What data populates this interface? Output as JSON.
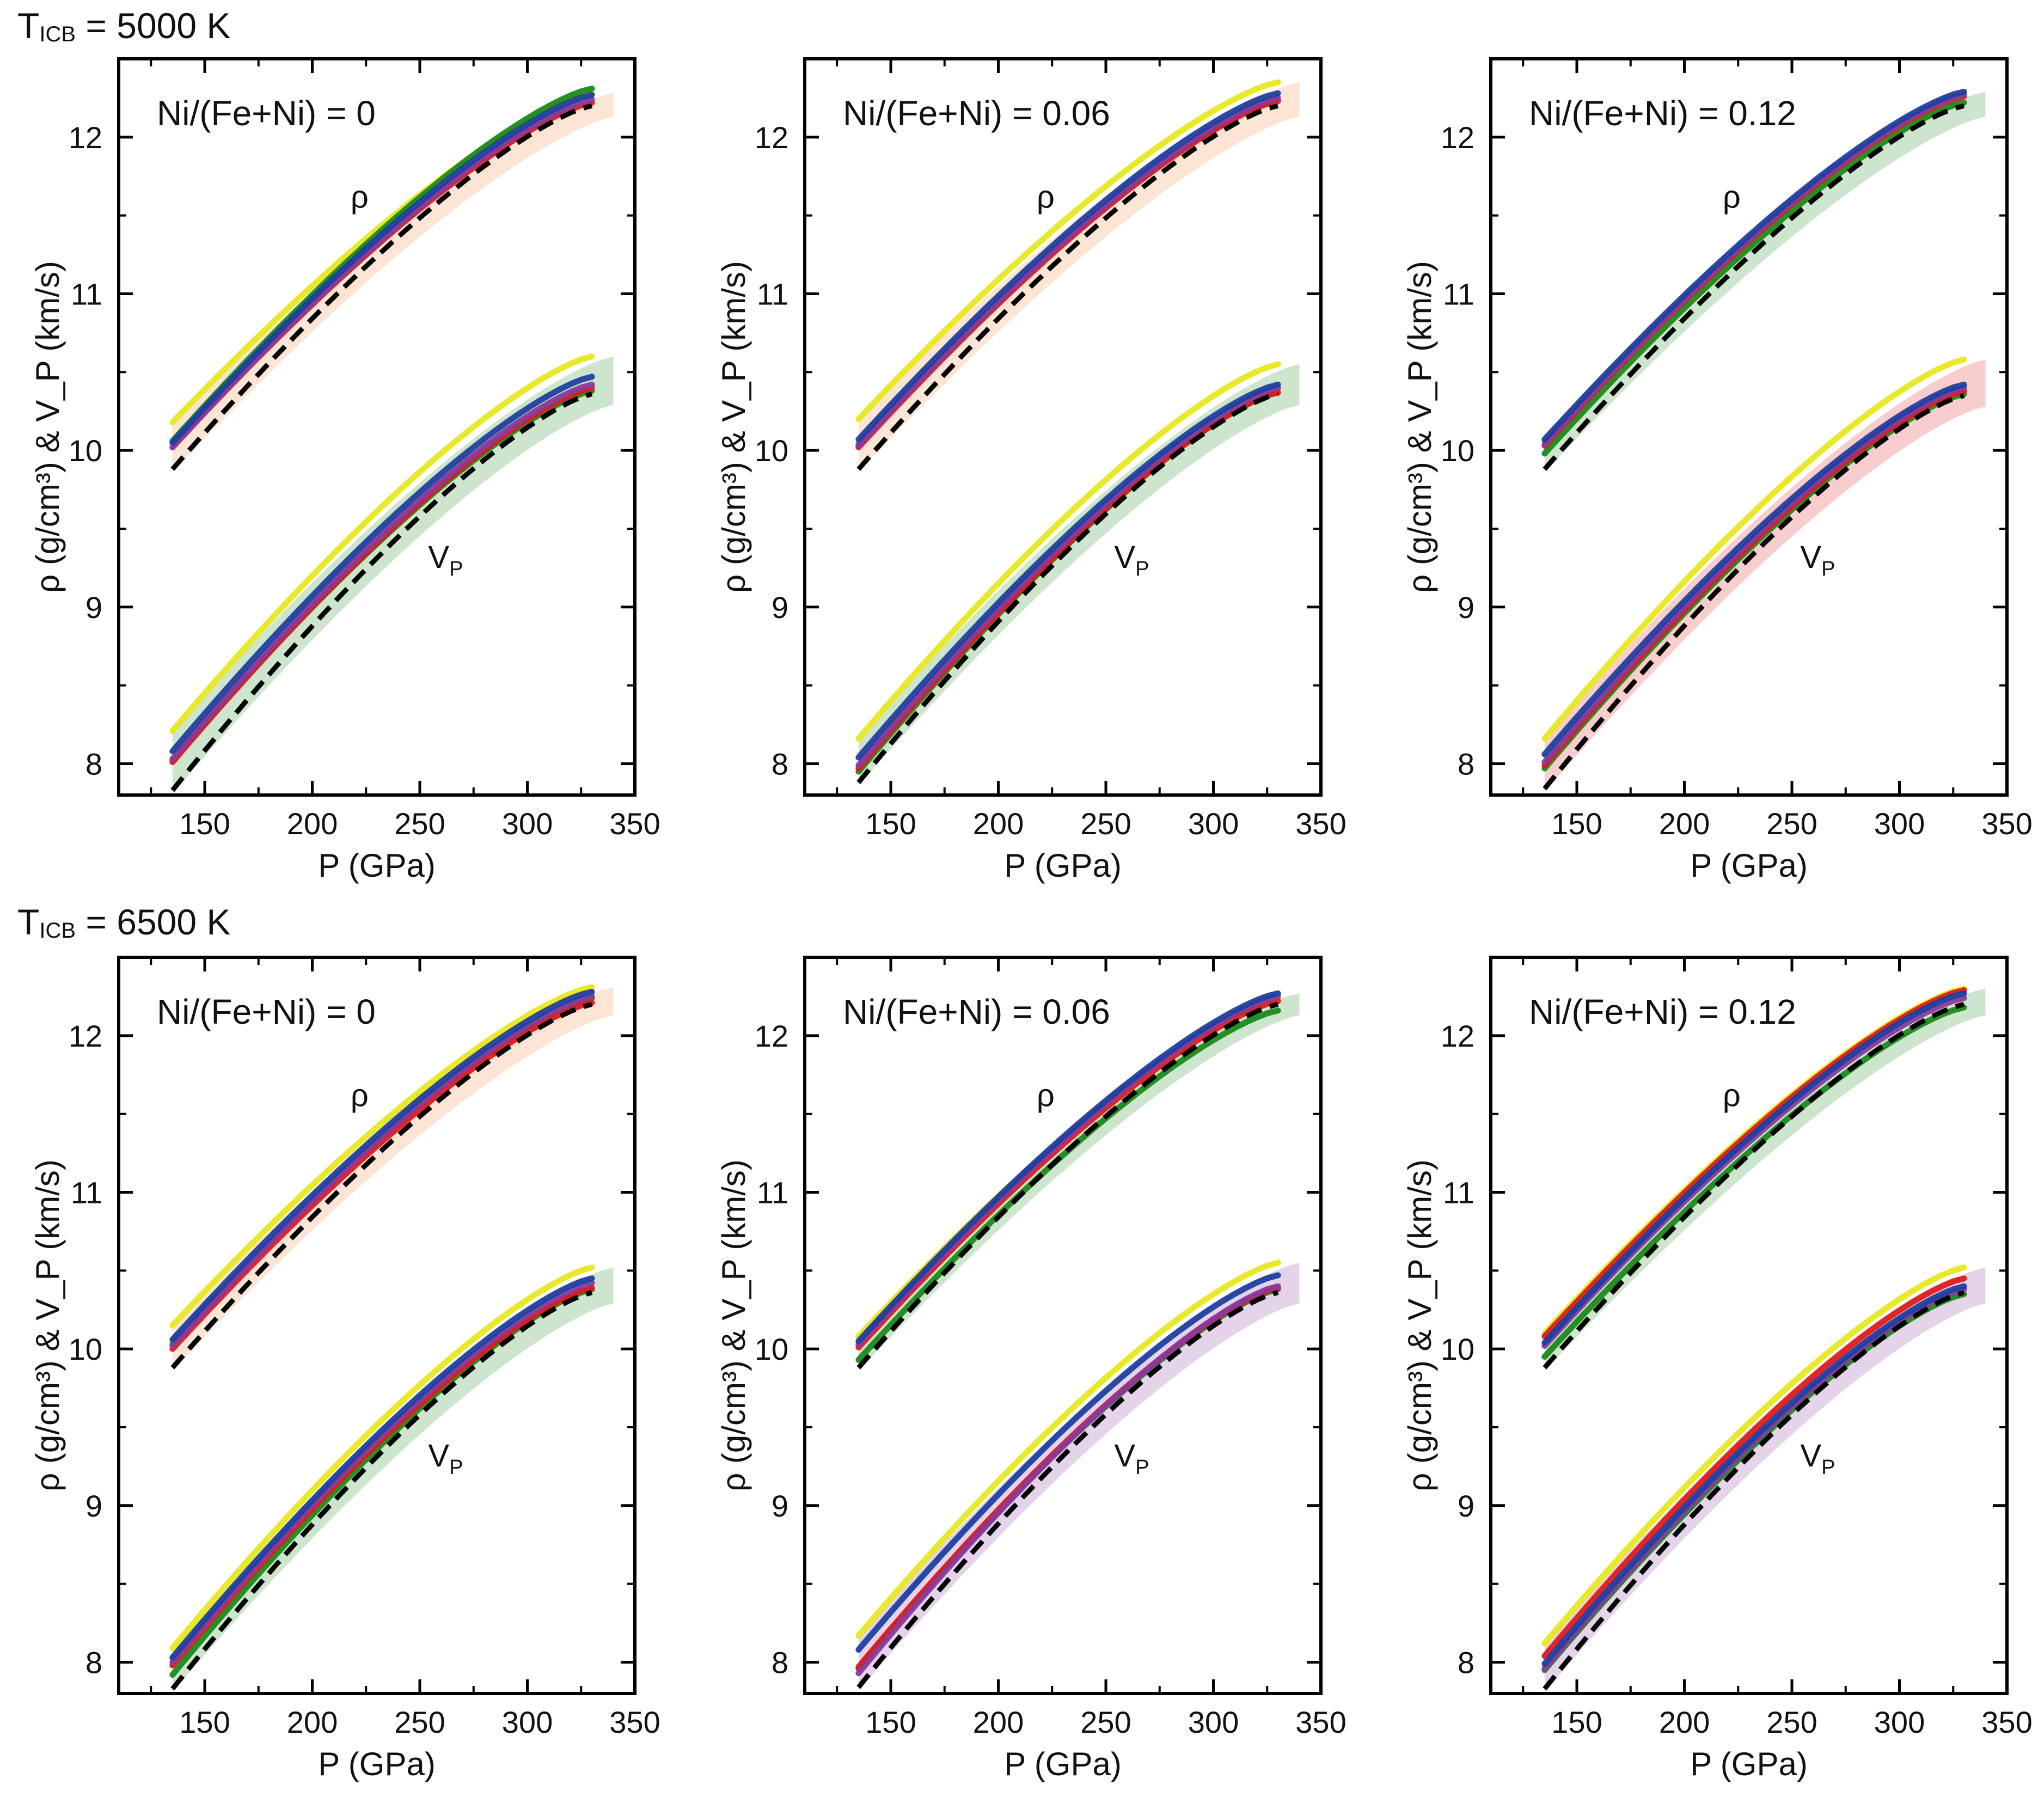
{
  "figure": {
    "rows": [
      {
        "title_main": "T",
        "title_sub": "ICB",
        "title_rest": " = 5000 K"
      },
      {
        "title_main": "T",
        "title_sub": "ICB",
        "title_rest": " = 6500 K"
      }
    ]
  },
  "colors": {
    "yellow": "#e8e820",
    "green": "#1a8a1a",
    "blue": "#1f3fa0",
    "red": "#e01a1a",
    "purple": "#8a3a9a",
    "orange": "#f08a3c",
    "prem": "#000000"
  },
  "chart_data": [
    {
      "type": "line",
      "row": 0,
      "col": 0,
      "panel_label": "Ni/(Fe+Ni) = 0",
      "xlabel": "P (GPa)",
      "ylabel": "ρ (g/cm³) & V_P (km/s)",
      "xlim": [
        110,
        350
      ],
      "ylim": [
        7.8,
        12.5
      ],
      "xticks": [
        150,
        200,
        250,
        300,
        350
      ],
      "yticks": [
        8,
        9,
        10,
        11,
        12
      ],
      "rho_label": "ρ",
      "vp_label": "V",
      "vp_label_sub": "P",
      "x": [
        135,
        330
      ],
      "rho": {
        "prem": [
          9.88,
          12.2
        ],
        "yellow": [
          10.18,
          12.28
        ],
        "green": [
          10.06,
          12.31
        ],
        "blue": [
          10.05,
          12.27
        ],
        "red": [
          10.02,
          12.22
        ],
        "purple": [
          10.02,
          12.24
        ],
        "band_color": "orange"
      },
      "vp": {
        "prem": [
          7.83,
          10.36
        ],
        "yellow": [
          8.21,
          10.6
        ],
        "green": [
          8.02,
          10.38
        ],
        "blue": [
          8.08,
          10.47
        ],
        "red": [
          8.01,
          10.4
        ],
        "purple": [
          8.03,
          10.42
        ],
        "band_color": "green"
      }
    },
    {
      "type": "line",
      "row": 0,
      "col": 1,
      "panel_label": "Ni/(Fe+Ni) = 0.06",
      "xlabel": "P (GPa)",
      "ylabel": "ρ (g/cm³) & V_P (km/s)",
      "xlim": [
        110,
        350
      ],
      "ylim": [
        7.8,
        12.5
      ],
      "xticks": [
        150,
        200,
        250,
        300,
        350
      ],
      "yticks": [
        8,
        9,
        10,
        11,
        12
      ],
      "rho_label": "ρ",
      "vp_label": "V",
      "vp_label_sub": "P",
      "x": [
        135,
        330
      ],
      "rho": {
        "prem": [
          9.88,
          12.2
        ],
        "yellow": [
          10.2,
          12.35
        ],
        "green": [
          10.04,
          12.24
        ],
        "blue": [
          10.07,
          12.28
        ],
        "red": [
          10.02,
          12.23
        ],
        "purple": [
          10.03,
          12.25
        ],
        "band_color": "orange"
      },
      "vp": {
        "prem": [
          7.88,
          10.36
        ],
        "yellow": [
          8.16,
          10.55
        ],
        "green": [
          7.95,
          10.37
        ],
        "blue": [
          8.04,
          10.42
        ],
        "red": [
          7.97,
          10.37
        ],
        "purple": [
          7.99,
          10.4
        ],
        "band_color": "green"
      }
    },
    {
      "type": "line",
      "row": 0,
      "col": 2,
      "panel_label": "Ni/(Fe+Ni) = 0.12",
      "xlabel": "P (GPa)",
      "ylabel": "ρ (g/cm³) & V_P (km/s)",
      "xlim": [
        110,
        350
      ],
      "ylim": [
        7.8,
        12.5
      ],
      "xticks": [
        150,
        200,
        250,
        300,
        350
      ],
      "yticks": [
        8,
        9,
        10,
        11,
        12
      ],
      "rho_label": "ρ",
      "vp_label": "V",
      "vp_label_sub": "P",
      "x": [
        135,
        330
      ],
      "rho": {
        "prem": [
          9.88,
          12.2
        ],
        "yellow": [
          10.06,
          12.25
        ],
        "green": [
          9.98,
          12.22
        ],
        "blue": [
          10.07,
          12.29
        ],
        "red": [
          10.03,
          12.26
        ],
        "purple": [
          10.04,
          12.27
        ],
        "band_color": "green"
      },
      "vp": {
        "prem": [
          7.84,
          10.35
        ],
        "yellow": [
          8.16,
          10.58
        ],
        "green": [
          7.97,
          10.36
        ],
        "blue": [
          8.06,
          10.42
        ],
        "red": [
          7.99,
          10.38
        ],
        "purple": [
          8.01,
          10.4
        ],
        "band_color": "red"
      }
    },
    {
      "type": "line",
      "row": 1,
      "col": 0,
      "panel_label": "Ni/(Fe+Ni) = 0",
      "xlabel": "P (GPa)",
      "ylabel": "ρ (g/cm³) & V_P (km/s)",
      "xlim": [
        110,
        350
      ],
      "ylim": [
        7.8,
        12.5
      ],
      "xticks": [
        150,
        200,
        250,
        300,
        350
      ],
      "yticks": [
        8,
        9,
        10,
        11,
        12
      ],
      "rho_label": "ρ",
      "vp_label": "V",
      "vp_label_sub": "P",
      "x": [
        135,
        330
      ],
      "rho": {
        "prem": [
          9.88,
          12.2
        ],
        "yellow": [
          10.15,
          12.31
        ],
        "green": [
          10.03,
          12.24
        ],
        "blue": [
          10.06,
          12.28
        ],
        "red": [
          10.0,
          12.21
        ],
        "purple": [
          10.02,
          12.25
        ],
        "band_color": "orange"
      },
      "vp": {
        "prem": [
          7.83,
          10.36
        ],
        "yellow": [
          8.09,
          10.52
        ],
        "green": [
          7.92,
          10.38
        ],
        "blue": [
          8.03,
          10.45
        ],
        "red": [
          7.98,
          10.39
        ],
        "purple": [
          8.0,
          10.42
        ],
        "band_color": "green"
      }
    },
    {
      "type": "line",
      "row": 1,
      "col": 1,
      "panel_label": "Ni/(Fe+Ni) = 0.06",
      "xlabel": "P (GPa)",
      "ylabel": "ρ (g/cm³) & V_P (km/s)",
      "xlim": [
        110,
        350
      ],
      "ylim": [
        7.8,
        12.5
      ],
      "xticks": [
        150,
        200,
        250,
        300,
        350
      ],
      "yticks": [
        8,
        9,
        10,
        11,
        12
      ],
      "rho_label": "ρ",
      "vp_label": "V",
      "vp_label_sub": "P",
      "x": [
        135,
        330
      ],
      "rho": {
        "prem": [
          9.88,
          12.2
        ],
        "yellow": [
          10.08,
          12.24
        ],
        "green": [
          9.93,
          12.16
        ],
        "blue": [
          10.05,
          12.27
        ],
        "red": [
          10.01,
          12.22
        ],
        "purple": [
          10.03,
          12.25
        ],
        "band_color": "green"
      },
      "vp": {
        "prem": [
          7.84,
          10.36
        ],
        "yellow": [
          8.17,
          10.55
        ],
        "green": [
          7.96,
          10.38
        ],
        "blue": [
          8.08,
          10.47
        ],
        "red": [
          7.97,
          10.39
        ],
        "purple": [
          7.93,
          10.4
        ],
        "band_color": "purple"
      }
    },
    {
      "type": "line",
      "row": 1,
      "col": 2,
      "panel_label": "Ni/(Fe+Ni) = 0.12",
      "xlabel": "P (GPa)",
      "ylabel": "ρ (g/cm³) & V_P (km/s)",
      "xlim": [
        110,
        350
      ],
      "ylim": [
        7.8,
        12.5
      ],
      "xticks": [
        150,
        200,
        250,
        300,
        350
      ],
      "yticks": [
        8,
        9,
        10,
        11,
        12
      ],
      "rho_label": "ρ",
      "vp_label": "V",
      "vp_label_sub": "P",
      "x": [
        135,
        330
      ],
      "rho": {
        "prem": [
          9.88,
          12.2
        ],
        "yellow": [
          10.1,
          12.3
        ],
        "green": [
          9.95,
          12.18
        ],
        "blue": [
          10.04,
          12.27
        ],
        "red": [
          10.08,
          12.29
        ],
        "purple": [
          10.02,
          12.24
        ],
        "band_color": "green"
      },
      "vp": {
        "prem": [
          7.83,
          10.36
        ],
        "yellow": [
          8.12,
          10.52
        ],
        "green": [
          7.95,
          10.35
        ],
        "blue": [
          7.99,
          10.4
        ],
        "red": [
          8.04,
          10.45
        ],
        "purple": [
          7.96,
          10.38
        ],
        "band_color": "purple"
      }
    }
  ]
}
